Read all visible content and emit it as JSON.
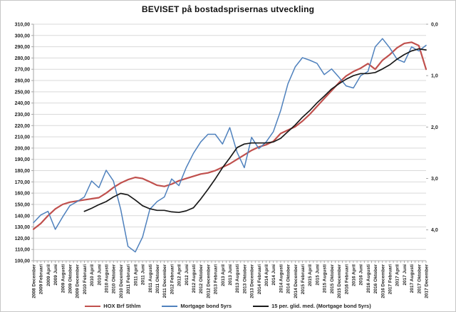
{
  "title": "BEVISET på bostadsprisernas utveckling",
  "colors": {
    "background": "#FFFFFF",
    "border": "#C6C6C6",
    "grid": "#D9D9D9",
    "axis_line": "#A6A6A6",
    "tick": "#8C8C8C",
    "text": "#262626",
    "series_red": "#C0504D",
    "series_blue": "#4F81BD",
    "series_black": "#1A1A1A"
  },
  "chart_data": {
    "type": "line",
    "title": "BEVISET på bostadsprisernas utveckling",
    "grid": "horizontal",
    "legend_position": "bottom",
    "categories": [
      "2008 December",
      "2009 Februari",
      "2009 April",
      "2009 Juni",
      "2009 Augusti",
      "2009 Oktober",
      "2009 December",
      "2010 Februari",
      "2010 April",
      "2010 Juni",
      "2010 Augusti",
      "2010 Oktober",
      "2010 December",
      "2011 Februari",
      "2011 April",
      "2011 Juni",
      "2011 Augusti",
      "2011 Oktober",
      "2011 December",
      "2012 Februari",
      "2012 April",
      "2012 Juni",
      "2012 Augusti",
      "2012 Oktober",
      "2012 December",
      "2013 Februari",
      "2013 April",
      "2013 Juni",
      "2013 Augusti",
      "2013 Oktober",
      "2013 December",
      "2014 Februari",
      "2014 April",
      "2014 Juni",
      "2014 Augusti",
      "2014 Oktober",
      "2014 December",
      "2015 Februari",
      "2015 April",
      "2015 Juni",
      "2015 Augusti",
      "2015 Oktober",
      "2015 December",
      "2016 Februari",
      "2016 April",
      "2016 Juni",
      "2016 Augusti",
      "2016 Oktober",
      "2016 December",
      "2017 Februari",
      "2017 April",
      "2017 Juni",
      "2017 Augusti",
      "2017 Oktober",
      "2017 December"
    ],
    "left_axis": {
      "min": 100,
      "max": 310,
      "step": 10,
      "label_format": "###,00"
    },
    "right_axis": {
      "min": 0.0,
      "max": 4.6,
      "step": 1.0,
      "inverted": true,
      "tick_values": [
        0,
        1,
        2,
        3,
        4
      ],
      "tick_labels": [
        "0,0",
        "1,0",
        "2,0",
        "3,0",
        "4,0"
      ]
    },
    "series": [
      {
        "name": "HOX Brf Sthlm",
        "axis": "left",
        "color": "#C0504D",
        "width": 2.2,
        "start_index": 0,
        "values": [
          128,
          133,
          140,
          146,
          150,
          152,
          153,
          154,
          155,
          156,
          160,
          165,
          169,
          172,
          174,
          173,
          170,
          167,
          166,
          168,
          171,
          173,
          175,
          177,
          178,
          180,
          183,
          186,
          190,
          194,
          198,
          201,
          203,
          206,
          213,
          216,
          219,
          224,
          230,
          237,
          244,
          251,
          258,
          264,
          268,
          271,
          275,
          270,
          278,
          283,
          289,
          293,
          294,
          291,
          270
        ]
      },
      {
        "name": "Mortgage bond 5yrs",
        "axis": "right",
        "color": "#4F81BD",
        "width": 1.5,
        "start_index": 0,
        "values": [
          3.86,
          3.71,
          3.64,
          3.99,
          3.75,
          3.53,
          3.45,
          3.36,
          3.05,
          3.18,
          2.84,
          3.05,
          3.6,
          4.32,
          4.43,
          4.14,
          3.6,
          3.45,
          3.36,
          3.01,
          3.14,
          2.79,
          2.51,
          2.29,
          2.14,
          2.14,
          2.33,
          2.01,
          2.49,
          2.79,
          2.2,
          2.42,
          2.29,
          2.09,
          1.68,
          1.16,
          0.83,
          0.65,
          0.7,
          0.76,
          0.98,
          0.87,
          1.03,
          1.2,
          1.24,
          1.0,
          0.92,
          0.44,
          0.28,
          0.46,
          0.68,
          0.74,
          0.44,
          0.52,
          0.41
        ]
      },
      {
        "name": "15 per. glid. med. (Mortgage bond 5yrs)",
        "axis": "right",
        "color": "#1A1A1A",
        "width": 1.7,
        "start_index": 7,
        "values": [
          3.64,
          3.58,
          3.51,
          3.45,
          3.36,
          3.29,
          3.32,
          3.42,
          3.53,
          3.59,
          3.62,
          3.62,
          3.65,
          3.66,
          3.63,
          3.57,
          3.4,
          3.21,
          3.01,
          2.79,
          2.6,
          2.4,
          2.33,
          2.31,
          2.31,
          2.31,
          2.29,
          2.22,
          2.09,
          1.96,
          1.81,
          1.68,
          1.53,
          1.4,
          1.26,
          1.16,
          1.07,
          1.0,
          0.96,
          0.96,
          0.94,
          0.87,
          0.79,
          0.68,
          0.59,
          0.52,
          0.48,
          0.5
        ]
      }
    ]
  }
}
